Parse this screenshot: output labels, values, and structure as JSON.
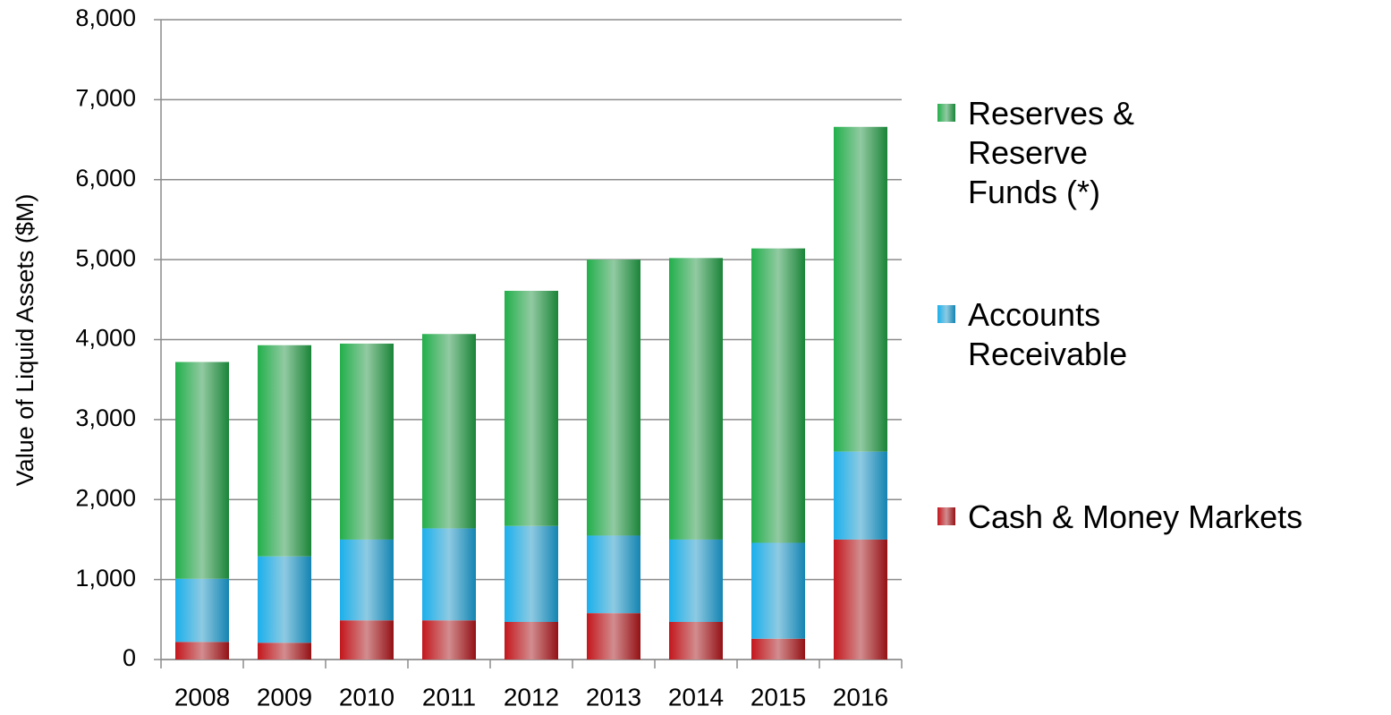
{
  "chart_data": {
    "type": "stacked_bar",
    "y_label": "Value of Liquid Assets ($M)",
    "categories": [
      "2008",
      "2009",
      "2010",
      "2011",
      "2012",
      "2013",
      "2014",
      "2015",
      "2016"
    ],
    "series": [
      {
        "name": "Cash & Money Markets",
        "color": "#c4161c",
        "values": [
          220,
          210,
          490,
          490,
          470,
          580,
          470,
          260,
          1500
        ]
      },
      {
        "name": "Accounts Receivable",
        "color": "#1ab0ec",
        "values": [
          790,
          1080,
          1010,
          1150,
          1200,
          970,
          1030,
          1200,
          1100
        ]
      },
      {
        "name": "Reserves & Reserve Funds (*)",
        "color": "#22b04b",
        "values": [
          2710,
          2640,
          2450,
          2430,
          2940,
          3450,
          3520,
          3680,
          4060
        ]
      }
    ],
    "ylim": [
      0,
      8000
    ],
    "yticks": [
      0,
      {
        "value": 1000,
        "label": "1,000"
      },
      {
        "value": 2000,
        "label": "2,000"
      },
      {
        "value": 3000,
        "label": "3,000"
      },
      {
        "value": 4000,
        "label": "4,000"
      },
      {
        "value": 5000,
        "label": "5,000"
      },
      {
        "value": 6000,
        "label": "6,000"
      },
      {
        "value": 7000,
        "label": "7,000"
      },
      {
        "value": 8000,
        "label": "8,000"
      }
    ],
    "grid": true,
    "legend": "right"
  }
}
